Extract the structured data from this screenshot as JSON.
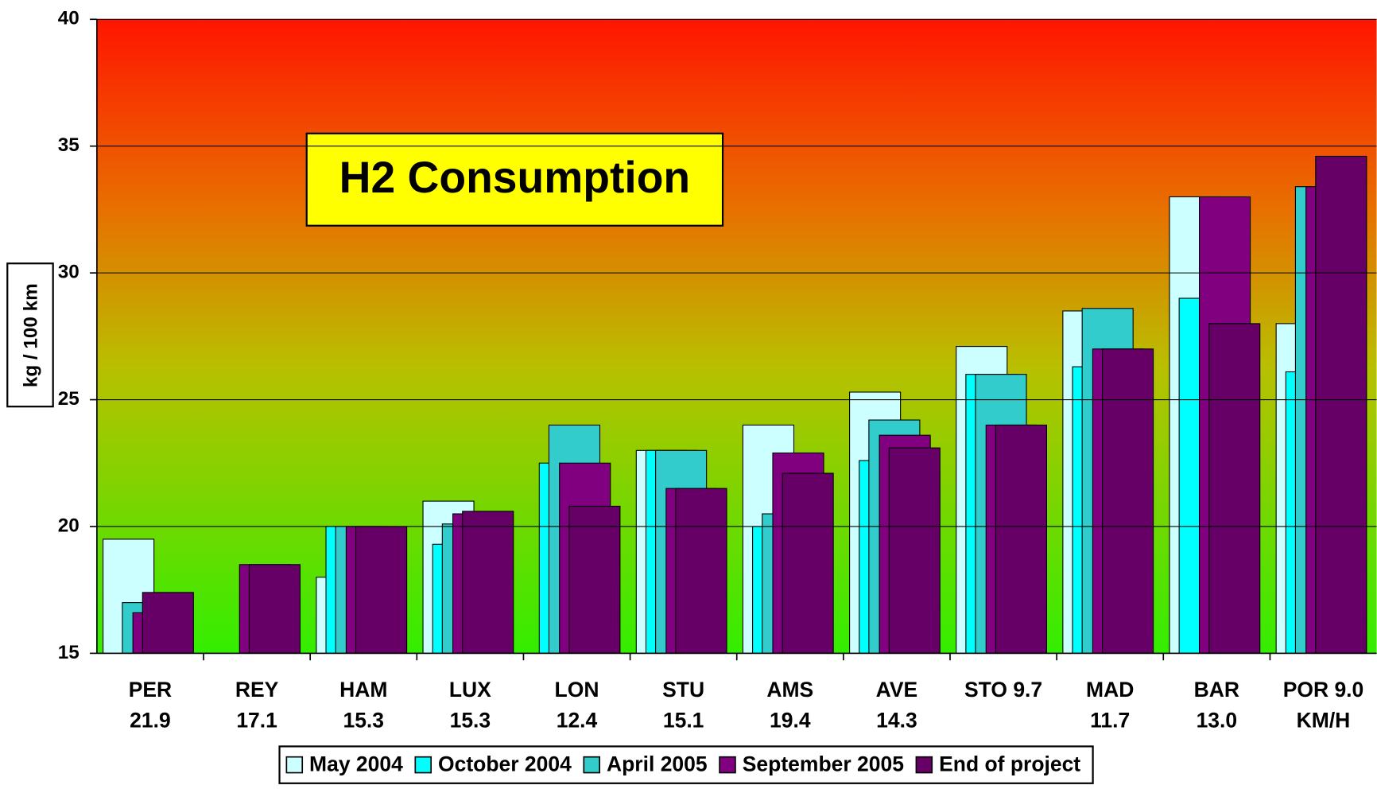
{
  "chart_data": {
    "type": "bar",
    "title": "H2 Consumption",
    "y_label": "kg / 100 km",
    "categories": [
      [
        "PER",
        "21.9"
      ],
      [
        "REY",
        "17.1"
      ],
      [
        "HAM",
        "15.3"
      ],
      [
        "LUX",
        "15.3"
      ],
      [
        "LON",
        "12.4"
      ],
      [
        "STU",
        "15.1"
      ],
      [
        "AMS",
        "19.4"
      ],
      [
        "AVE",
        "14.3"
      ],
      [
        "STO 9.7"
      ],
      [
        "MAD",
        "11.7"
      ],
      [
        "BAR",
        "13.0"
      ],
      [
        "POR 9.0",
        "KM/H"
      ]
    ],
    "series": [
      {
        "name": "May 2004",
        "color": "#ccffff",
        "values": [
          19.5,
          null,
          18.0,
          21.0,
          null,
          23.0,
          24.0,
          25.3,
          27.1,
          28.5,
          33.0,
          28.0
        ]
      },
      {
        "name": "October 2004",
        "color": "#00ffff",
        "values": [
          null,
          null,
          20.0,
          19.3,
          22.5,
          23.0,
          20.0,
          22.6,
          26.0,
          26.3,
          29.0,
          26.1
        ]
      },
      {
        "name": "April 2005",
        "color": "#33cccc",
        "values": [
          17.0,
          null,
          20.0,
          20.1,
          24.0,
          23.0,
          20.5,
          24.2,
          26.0,
          28.6,
          null,
          33.4
        ]
      },
      {
        "name": "September 2005",
        "color": "#800080",
        "values": [
          16.6,
          18.5,
          20.0,
          20.5,
          22.5,
          21.5,
          22.9,
          23.6,
          24.0,
          27.0,
          33.0,
          33.4
        ]
      },
      {
        "name": "End of project",
        "color": "#660066",
        "values": [
          17.4,
          18.5,
          20.0,
          20.6,
          20.8,
          21.5,
          22.1,
          23.1,
          24.0,
          27.0,
          28.0,
          34.6
        ]
      }
    ],
    "ylim": [
      15,
      40
    ],
    "yticks": [
      15,
      20,
      25,
      30,
      35,
      40
    ],
    "grid": true,
    "legend": "bottom"
  }
}
